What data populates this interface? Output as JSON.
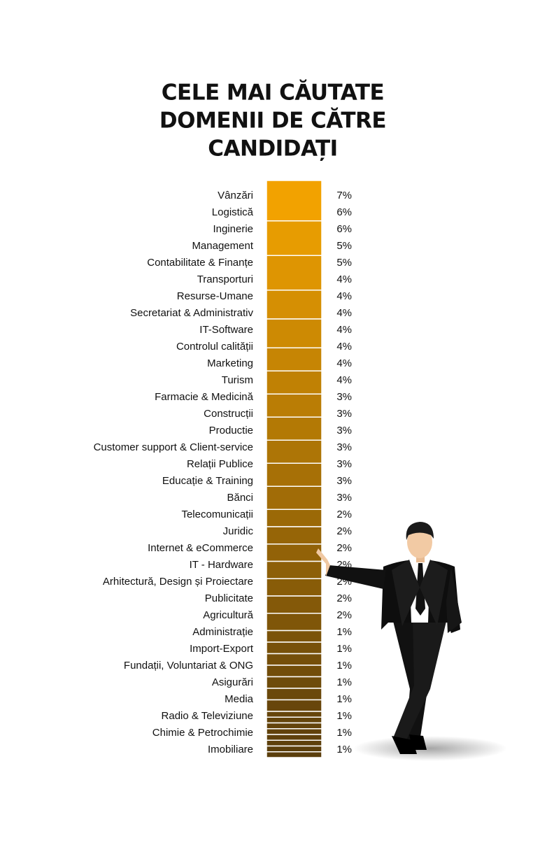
{
  "chart_data": {
    "type": "stacked-column",
    "title": [
      "CELE MAI CĂUTATE",
      "DOMENII DE CĂTRE",
      "CANDIDAȚI"
    ],
    "categories": [
      "Vânzări",
      "Logistică",
      "Inginerie",
      "Management",
      "Contabilitate & Finanțe",
      "Transporturi",
      "Resurse-Umane",
      "Secretariat & Administrativ",
      "IT-Software",
      "Controlul calității",
      "Marketing",
      "Turism",
      "Farmacie & Medicină",
      "Construcții",
      "Productie",
      "Customer support & Client-service",
      "Relații Publice",
      "Educație & Training",
      "Bănci",
      "Telecomunicații",
      "Juridic",
      "Internet & eCommerce",
      "IT - Hardware",
      "Arhitectură, Design și Proiectare",
      "Publicitate",
      "Agricultură",
      "Administrație",
      "Import-Export",
      "Fundații, Voluntariat & ONG",
      "Asigurări",
      "Media",
      "Radio & Televiziune",
      "Chimie & Petrochimie",
      "Imobiliare"
    ],
    "values": [
      7,
      6,
      6,
      5,
      5,
      4,
      4,
      4,
      4,
      4,
      4,
      4,
      3,
      3,
      3,
      3,
      3,
      3,
      3,
      2,
      2,
      2,
      2,
      2,
      2,
      2,
      1,
      1,
      1,
      1,
      1,
      1,
      1,
      1
    ],
    "value_labels": [
      "7%",
      "6%",
      "6%",
      "5%",
      "5%",
      "4%",
      "4%",
      "4%",
      "4%",
      "4%",
      "4%",
      "4%",
      "3%",
      "3%",
      "3%",
      "3%",
      "3%",
      "3%",
      "3%",
      "2%",
      "2%",
      "2%",
      "2%",
      "2%",
      "2%",
      "2%",
      "1%",
      "1%",
      "1%",
      "1%",
      "1%",
      "1%",
      "1%",
      "1%"
    ],
    "color_top": "#f7a600",
    "color_bottom": "#5a3d0c"
  }
}
